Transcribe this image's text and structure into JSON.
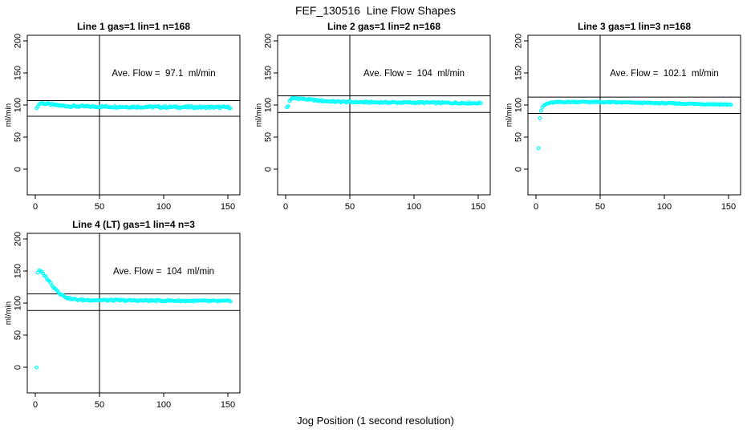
{
  "figure": {
    "title": "FEF_130516  Line Flow Shapes",
    "x_axis_label": "Jog Position (1 second resolution)",
    "background_color": "#FFFFFF",
    "point_color": "#00FFFF",
    "axis_color": "#000000"
  },
  "chart_data": [
    {
      "type": "scatter",
      "title": "Line 1 gas=1 lin=1 n=168",
      "annotation": "Ave. Flow =  97.1  ml/min",
      "ave_flow_ml_min": 97.1,
      "ylabel": "ml/min",
      "xlim": [
        0,
        150
      ],
      "ylim": [
        0,
        200
      ],
      "xticks": [
        0,
        50,
        100,
        150
      ],
      "yticks": [
        0,
        50,
        100,
        150,
        200
      ],
      "vline_x": 50,
      "ref_lines": {
        "upper": 106.8,
        "lower": 82.5
      },
      "series_x_step": 1,
      "jitter": 1.5,
      "shape_points": [
        [
          1,
          94
        ],
        [
          2,
          99
        ],
        [
          3,
          101.5
        ],
        [
          4,
          102.5
        ],
        [
          5,
          103
        ],
        [
          6,
          102.8
        ],
        [
          8,
          102.2
        ],
        [
          10,
          101.5
        ],
        [
          12,
          100.8
        ],
        [
          15,
          100
        ],
        [
          20,
          99
        ],
        [
          25,
          98.4
        ],
        [
          30,
          98
        ],
        [
          40,
          97.6
        ],
        [
          60,
          97.3
        ],
        [
          80,
          97.1
        ],
        [
          100,
          96.9
        ],
        [
          120,
          96.7
        ],
        [
          152,
          96.4
        ]
      ]
    },
    {
      "type": "scatter",
      "title": "Line 2 gas=1 lin=2 n=168",
      "annotation": "Ave. Flow =  104  ml/min",
      "ave_flow_ml_min": 104,
      "ylabel": "ml/min",
      "xlim": [
        0,
        150
      ],
      "ylim": [
        0,
        200
      ],
      "xticks": [
        0,
        50,
        100,
        150
      ],
      "yticks": [
        0,
        50,
        100,
        150,
        200
      ],
      "vline_x": 50,
      "ref_lines": {
        "upper": 114.4,
        "lower": 88.4
      },
      "series_x_step": 1,
      "jitter": 1.2,
      "shape_points": [
        [
          1,
          96
        ],
        [
          2,
          98
        ],
        [
          3,
          106.5
        ],
        [
          4,
          109
        ],
        [
          5,
          110
        ],
        [
          7,
          110.5
        ],
        [
          10,
          110.2
        ],
        [
          13,
          109.6
        ],
        [
          16,
          109
        ],
        [
          20,
          108
        ],
        [
          25,
          107
        ],
        [
          30,
          106.3
        ],
        [
          35,
          105.7
        ],
        [
          40,
          105.2
        ],
        [
          50,
          104.8
        ],
        [
          60,
          104.3
        ],
        [
          80,
          104
        ],
        [
          100,
          103.8
        ],
        [
          120,
          103.5
        ],
        [
          152,
          103
        ]
      ]
    },
    {
      "type": "scatter",
      "title": "Line 3 gas=1 lin=3 n=168",
      "annotation": "Ave. Flow =  102.1  ml/min",
      "ave_flow_ml_min": 102.1,
      "ylabel": "ml/min",
      "xlim": [
        0,
        150
      ],
      "ylim": [
        0,
        200
      ],
      "xticks": [
        0,
        50,
        100,
        150
      ],
      "yticks": [
        0,
        50,
        100,
        150,
        200
      ],
      "vline_x": 50,
      "ref_lines": {
        "upper": 112.3,
        "lower": 86.8
      },
      "series_x_step": 1,
      "jitter": 0.9,
      "shape_points": [
        [
          2,
          33
        ],
        [
          3,
          80
        ],
        [
          4,
          90
        ],
        [
          5,
          96
        ],
        [
          6,
          99
        ],
        [
          8,
          101.5
        ],
        [
          10,
          102.8
        ],
        [
          13,
          103.8
        ],
        [
          16,
          104.3
        ],
        [
          20,
          104.6
        ],
        [
          30,
          104.9
        ],
        [
          40,
          104.8
        ],
        [
          50,
          104.5
        ],
        [
          60,
          104.2
        ],
        [
          80,
          103.5
        ],
        [
          100,
          102.8
        ],
        [
          120,
          102
        ],
        [
          135,
          101.4
        ],
        [
          152,
          100.8
        ]
      ]
    },
    {
      "type": "scatter",
      "title": "Line 4 (LT) gas=1 lin=4 n=3",
      "annotation": "Ave. Flow =  104  ml/min",
      "ave_flow_ml_min": 104,
      "ylabel": "ml/min",
      "xlim": [
        0,
        150
      ],
      "ylim": [
        0,
        200
      ],
      "xticks": [
        0,
        50,
        100,
        150
      ],
      "yticks": [
        0,
        50,
        100,
        150,
        200
      ],
      "vline_x": 50,
      "ref_lines": {
        "upper": 114.4,
        "lower": 88.4
      },
      "series_x_step": 1,
      "jitter": 1.2,
      "shape_points": [
        [
          1,
          0
        ],
        [
          2,
          148
        ],
        [
          3,
          150
        ],
        [
          4,
          149.5
        ],
        [
          5,
          148
        ],
        [
          6,
          146
        ],
        [
          7,
          143.5
        ],
        [
          8,
          141
        ],
        [
          9,
          138.5
        ],
        [
          10,
          136
        ],
        [
          11,
          133.5
        ],
        [
          12,
          131
        ],
        [
          13,
          128.5
        ],
        [
          14,
          126
        ],
        [
          15,
          123.5
        ],
        [
          16,
          121.5
        ],
        [
          17,
          119.5
        ],
        [
          18,
          117.5
        ],
        [
          19,
          115.5
        ],
        [
          20,
          113.8
        ],
        [
          22,
          111.2
        ],
        [
          24,
          109.2
        ],
        [
          26,
          107.6
        ],
        [
          28,
          106.5
        ],
        [
          30,
          105.8
        ],
        [
          35,
          105
        ],
        [
          40,
          104.8
        ],
        [
          50,
          104.6
        ],
        [
          60,
          104.4
        ],
        [
          80,
          104
        ],
        [
          100,
          103.8
        ],
        [
          120,
          103.4
        ],
        [
          152,
          103
        ]
      ]
    }
  ]
}
